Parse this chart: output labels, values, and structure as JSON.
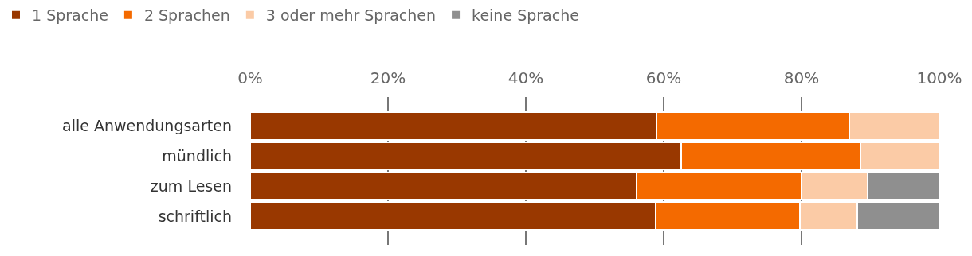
{
  "chart_data": {
    "type": "bar",
    "orientation": "horizontal",
    "stacked": true,
    "categories": [
      "alle Anwendungsarten",
      "mündlich",
      "zum Lesen",
      "schriftlich"
    ],
    "series": [
      {
        "name": "1 Sprache",
        "color": "#993800",
        "values": [
          59.0,
          62.6,
          56.1,
          58.8
        ]
      },
      {
        "name": "2 Sprachen",
        "color": "#f46a00",
        "values": [
          27.9,
          25.9,
          23.9,
          21.0
        ]
      },
      {
        "name": "3 oder mehr Sprachen",
        "color": "#fbcba6",
        "values": [
          13.1,
          11.5,
          9.6,
          8.3
        ]
      },
      {
        "name": "keine Sprache",
        "color": "#8f8f8f",
        "values": [
          null,
          null,
          10.4,
          12.0
        ]
      }
    ],
    "xlim": [
      0,
      100
    ],
    "xticks": [
      {
        "value": 0,
        "label": "0%"
      },
      {
        "value": 20,
        "label": "20%"
      },
      {
        "value": 40,
        "label": "40%"
      },
      {
        "value": 60,
        "label": "60%"
      },
      {
        "value": 80,
        "label": "80%"
      },
      {
        "value": 100,
        "label": "100%"
      }
    ],
    "grid": "x",
    "legend": "top left"
  }
}
